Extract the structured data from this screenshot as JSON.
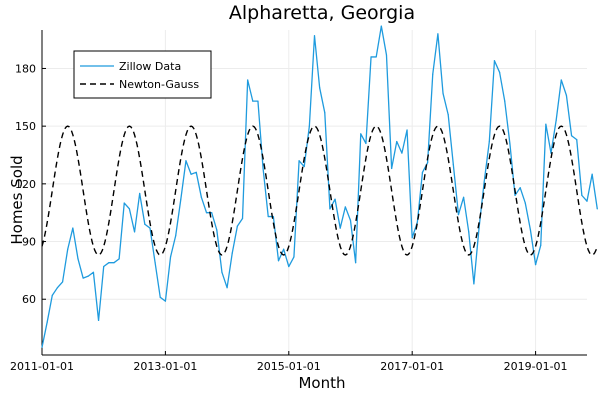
{
  "chart_data": {
    "type": "line",
    "title": "Alpharetta, Georgia",
    "xlabel": "Month",
    "ylabel": "Homes Sold",
    "x_axis": {
      "type": "date",
      "min": "2011-01-01",
      "max": "2019-11-01",
      "ticks": [
        "2011-01-01",
        "2013-01-01",
        "2015-01-01",
        "2017-01-01",
        "2019-01-01"
      ]
    },
    "y_axis": {
      "min": 31,
      "max": 200,
      "ticks": [
        60,
        90,
        120,
        150,
        180
      ]
    },
    "grid": true,
    "legend_position": "top-left",
    "series": [
      {
        "name": "Zillow Data",
        "color": "#1f9bde",
        "style": "solid",
        "points": [
          [
            "2011-01-01",
            35
          ],
          [
            "2011-02-01",
            48
          ],
          [
            "2011-03-01",
            62
          ],
          [
            "2011-04-01",
            66
          ],
          [
            "2011-05-01",
            69
          ],
          [
            "2011-06-01",
            86
          ],
          [
            "2011-07-01",
            97
          ],
          [
            "2011-08-01",
            81
          ],
          [
            "2011-09-01",
            71
          ],
          [
            "2011-10-01",
            72
          ],
          [
            "2011-11-01",
            74
          ],
          [
            "2011-12-01",
            49
          ],
          [
            "2012-01-01",
            77
          ],
          [
            "2012-02-01",
            79
          ],
          [
            "2012-03-01",
            79
          ],
          [
            "2012-04-01",
            81
          ],
          [
            "2012-05-01",
            110
          ],
          [
            "2012-06-01",
            107
          ],
          [
            "2012-07-01",
            95
          ],
          [
            "2012-08-01",
            115
          ],
          [
            "2012-09-01",
            99
          ],
          [
            "2012-10-01",
            97
          ],
          [
            "2012-11-01",
            79
          ],
          [
            "2012-12-01",
            61
          ],
          [
            "2013-01-01",
            59
          ],
          [
            "2013-02-01",
            82
          ],
          [
            "2013-03-01",
            93
          ],
          [
            "2013-04-01",
            112
          ],
          [
            "2013-05-01",
            132
          ],
          [
            "2013-06-01",
            125
          ],
          [
            "2013-07-01",
            126
          ],
          [
            "2013-08-01",
            113
          ],
          [
            "2013-09-01",
            105
          ],
          [
            "2013-10-01",
            105
          ],
          [
            "2013-11-01",
            96
          ],
          [
            "2013-12-01",
            74
          ],
          [
            "2014-01-01",
            66
          ],
          [
            "2014-02-01",
            84
          ],
          [
            "2014-03-01",
            98
          ],
          [
            "2014-04-01",
            102
          ],
          [
            "2014-05-01",
            174
          ],
          [
            "2014-06-01",
            163
          ],
          [
            "2014-07-01",
            163
          ],
          [
            "2014-08-01",
            128
          ],
          [
            "2014-09-01",
            103
          ],
          [
            "2014-10-01",
            103
          ],
          [
            "2014-11-01",
            80
          ],
          [
            "2014-12-01",
            86
          ],
          [
            "2015-01-01",
            77
          ],
          [
            "2015-02-01",
            82
          ],
          [
            "2015-03-01",
            132
          ],
          [
            "2015-04-01",
            129
          ],
          [
            "2015-05-01",
            150
          ],
          [
            "2015-06-01",
            197
          ],
          [
            "2015-07-01",
            170
          ],
          [
            "2015-08-01",
            157
          ],
          [
            "2015-09-01",
            107
          ],
          [
            "2015-10-01",
            112
          ],
          [
            "2015-11-01",
            97
          ],
          [
            "2015-12-01",
            108
          ],
          [
            "2016-01-01",
            101
          ],
          [
            "2016-02-01",
            79
          ],
          [
            "2016-03-01",
            146
          ],
          [
            "2016-04-01",
            141
          ],
          [
            "2016-05-01",
            186
          ],
          [
            "2016-06-01",
            186
          ],
          [
            "2016-07-01",
            202
          ],
          [
            "2016-08-01",
            187
          ],
          [
            "2016-09-01",
            128
          ],
          [
            "2016-10-01",
            142
          ],
          [
            "2016-11-01",
            136
          ],
          [
            "2016-12-01",
            148
          ],
          [
            "2017-01-01",
            92
          ],
          [
            "2017-02-01",
            100
          ],
          [
            "2017-03-01",
            126
          ],
          [
            "2017-04-01",
            131
          ],
          [
            "2017-05-01",
            177
          ],
          [
            "2017-06-01",
            198
          ],
          [
            "2017-07-01",
            167
          ],
          [
            "2017-08-01",
            156
          ],
          [
            "2017-09-01",
            130
          ],
          [
            "2017-10-01",
            104
          ],
          [
            "2017-11-01",
            113
          ],
          [
            "2017-12-01",
            95
          ],
          [
            "2018-01-01",
            68
          ],
          [
            "2018-02-01",
            97
          ],
          [
            "2018-03-01",
            121
          ],
          [
            "2018-04-01",
            142
          ],
          [
            "2018-05-01",
            184
          ],
          [
            "2018-06-01",
            178
          ],
          [
            "2018-07-01",
            163
          ],
          [
            "2018-08-01",
            141
          ],
          [
            "2018-09-01",
            114
          ],
          [
            "2018-10-01",
            118
          ],
          [
            "2018-11-01",
            110
          ],
          [
            "2018-12-01",
            96
          ],
          [
            "2019-01-01",
            78
          ],
          [
            "2019-02-01",
            88
          ],
          [
            "2019-03-01",
            151
          ],
          [
            "2019-04-01",
            136
          ],
          [
            "2019-05-01",
            153
          ],
          [
            "2019-06-01",
            174
          ],
          [
            "2019-07-01",
            166
          ],
          [
            "2019-08-01",
            145
          ],
          [
            "2019-09-01",
            143
          ],
          [
            "2019-10-01",
            114
          ],
          [
            "2019-11-01",
            111
          ],
          [
            "2019-12-01",
            125
          ],
          [
            "2020-01-01",
            107
          ]
        ]
      },
      {
        "name": "Newton-Gauss",
        "color": "#000000",
        "style": "dashed",
        "model": "seasonal sinusoid",
        "mean": 116.5,
        "amplitude": 33.5,
        "period_months": 12,
        "peak_month": "June",
        "start": "2011-01-01",
        "end": "2020-01-01"
      }
    ]
  }
}
